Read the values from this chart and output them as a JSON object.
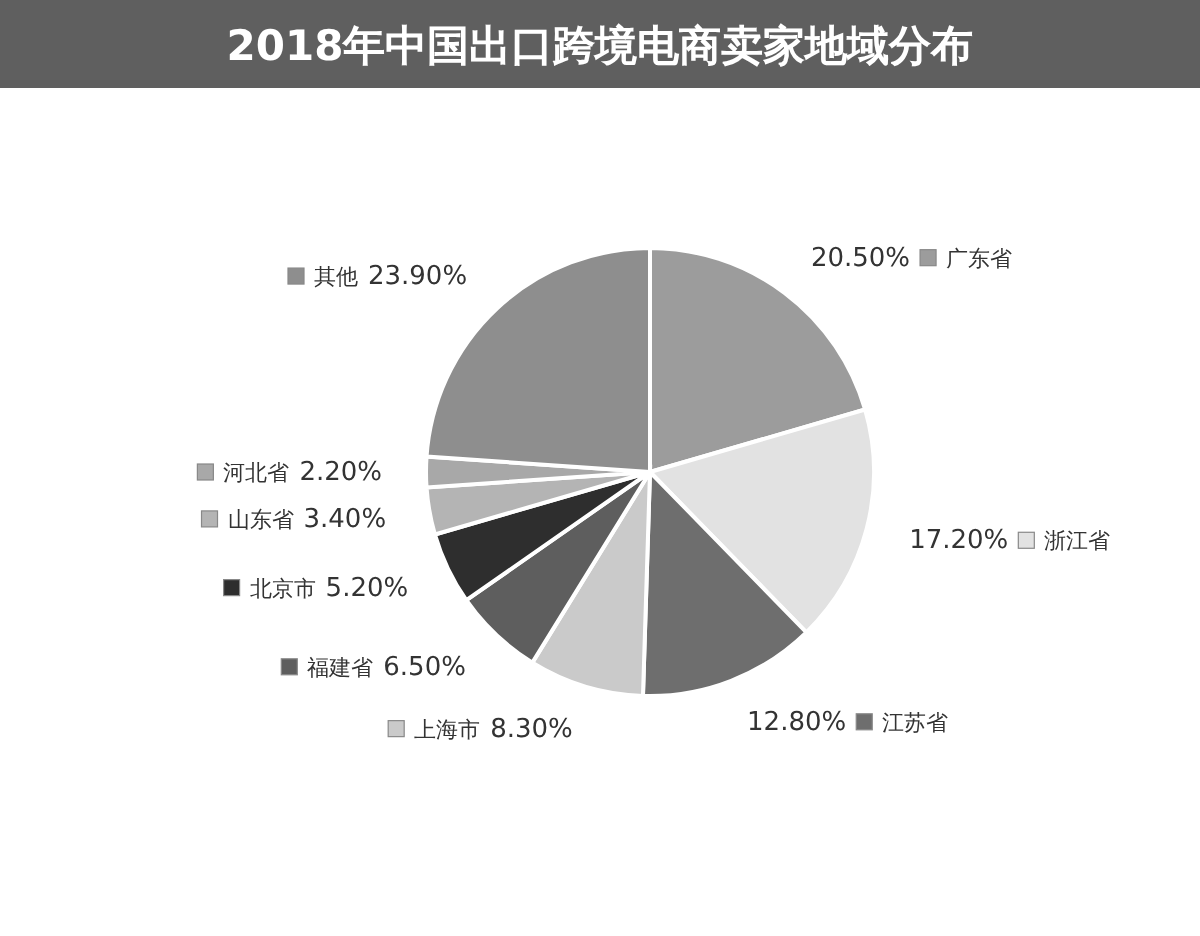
{
  "chart_data": {
    "type": "pie",
    "title": "2018年中国出口跨境电商卖家地域分布",
    "categories": [
      "广东省",
      "浙江省",
      "江苏省",
      "上海市",
      "福建省",
      "北京市",
      "山东省",
      "河北省",
      "其他"
    ],
    "values": [
      20.5,
      17.2,
      12.8,
      8.3,
      6.5,
      5.2,
      3.4,
      2.2,
      23.9
    ],
    "colors": [
      "#9c9c9c",
      "#e2e2e2",
      "#6e6e6e",
      "#cacaca",
      "#5e5e5e",
      "#2e2e2e",
      "#b4b4b4",
      "#a8a8a8",
      "#8e8e8e"
    ],
    "value_labels": [
      "20.50%",
      "17.20%",
      "12.80%",
      "8.30%",
      "6.50%",
      "5.20%",
      "3.40%",
      "2.20%",
      "23.90%"
    ],
    "legend": "right"
  }
}
